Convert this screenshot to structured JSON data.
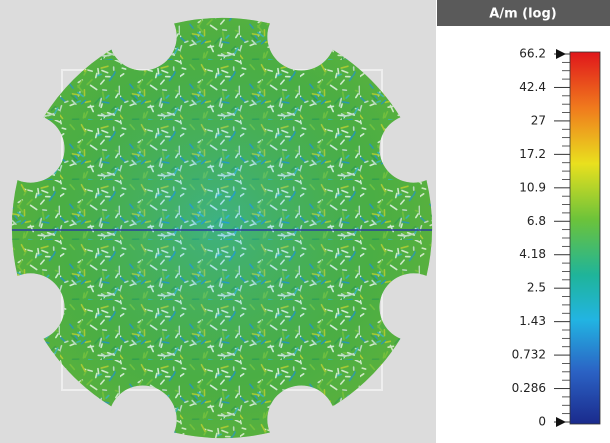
{
  "colorbar": {
    "title": "A/m (log)",
    "ticks": [
      "66.2",
      "42.4",
      "27",
      "17.2",
      "10.9",
      "6.8",
      "4.18",
      "2.5",
      "1.43",
      "0.732",
      "0.286",
      "0"
    ]
  }
}
